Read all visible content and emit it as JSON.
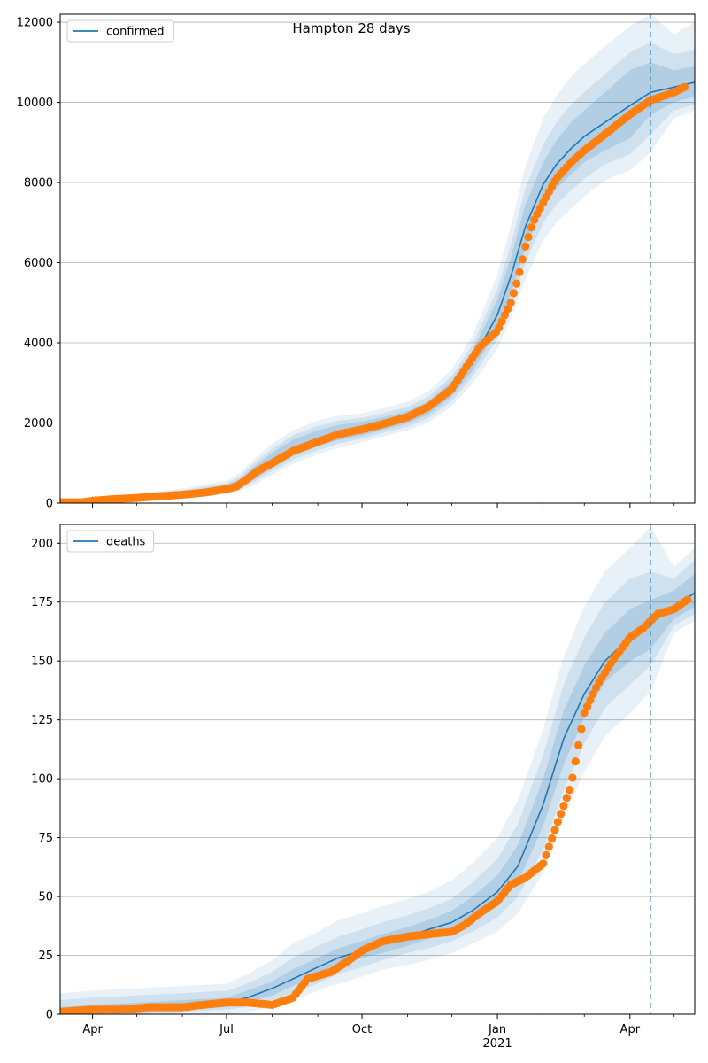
{
  "figure": {
    "title": "Hampton 28 days"
  },
  "colors": {
    "model_line": "#1f77b4",
    "band": "#1f77b4",
    "observed": "#ff7f0e",
    "grid": "#b0b0b0",
    "forecast_marker": "#1f77b4"
  },
  "x_axis": {
    "domain": [
      "2020-03-10",
      "2021-05-15"
    ],
    "major_ticks": [
      {
        "date": "2020-04-01",
        "label": "Apr"
      },
      {
        "date": "2020-07-01",
        "label": "Jul"
      },
      {
        "date": "2020-10-01",
        "label": "Oct"
      },
      {
        "date": "2021-01-01",
        "label": "Jan",
        "sublabel": "2021"
      },
      {
        "date": "2021-04-01",
        "label": "Apr"
      }
    ],
    "minor_ticks": [
      "2020-05-01",
      "2020-06-01",
      "2020-08-01",
      "2020-09-01",
      "2020-11-01",
      "2020-12-01",
      "2021-02-01",
      "2021-03-01",
      "2021-05-01"
    ],
    "forecast_start": "2021-04-15"
  },
  "chart_data": [
    {
      "type": "line",
      "legend": [
        "confirmed"
      ],
      "legend_position": "upper left",
      "grid": "horizontal",
      "ylim": [
        0,
        12200
      ],
      "yticks": [
        0,
        2000,
        4000,
        6000,
        8000,
        10000,
        12000
      ],
      "series": [
        {
          "name": "confirmed",
          "kind": "model",
          "x": [
            "2020-03-10",
            "2020-04-01",
            "2020-05-01",
            "2020-06-01",
            "2020-07-01",
            "2020-07-10",
            "2020-07-20",
            "2020-08-01",
            "2020-08-15",
            "2020-09-01",
            "2020-09-15",
            "2020-10-01",
            "2020-10-15",
            "2020-11-01",
            "2020-11-15",
            "2020-12-01",
            "2020-12-15",
            "2021-01-01",
            "2021-01-10",
            "2021-01-20",
            "2021-02-01",
            "2021-02-10",
            "2021-02-20",
            "2021-03-01",
            "2021-03-15",
            "2021-04-01",
            "2021-04-15",
            "2021-05-01",
            "2021-05-15"
          ],
          "y": [
            0,
            50,
            120,
            220,
            370,
            500,
            760,
            1070,
            1380,
            1620,
            1760,
            1860,
            1980,
            2140,
            2370,
            2850,
            3550,
            4700,
            5650,
            6900,
            7950,
            8450,
            8850,
            9150,
            9500,
            9920,
            10250,
            10380,
            10500
          ],
          "bands": [
            {
              "lower": [
                0,
                20,
                80,
                170,
                300,
                400,
                600,
                880,
                1180,
                1420,
                1570,
                1690,
                1830,
                1990,
                2210,
                2660,
                3300,
                4330,
                5200,
                6350,
                7400,
                7850,
                8200,
                8500,
                8800,
                9100,
                9700,
                10000,
                10150
              ],
              "upper": [
                0,
                80,
                160,
                280,
                450,
                600,
                920,
                1260,
                1580,
                1820,
                1950,
                2040,
                2140,
                2300,
                2540,
                3050,
                3800,
                5080,
                6120,
                7450,
                8500,
                9050,
                9500,
                9800,
                10250,
                10800,
                11000,
                10800,
                10900
              ]
            },
            {
              "lower": [
                0,
                10,
                60,
                140,
                260,
                350,
                530,
                800,
                1080,
                1320,
                1480,
                1610,
                1750,
                1910,
                2120,
                2550,
                3150,
                4100,
                4900,
                6000,
                7000,
                7450,
                7800,
                8100,
                8450,
                8700,
                9200,
                9800,
                9950
              ],
              "upper": [
                0,
                100,
                190,
                320,
                500,
                670,
                1010,
                1360,
                1690,
                1930,
                2060,
                2130,
                2240,
                2400,
                2650,
                3170,
                3960,
                5350,
                6450,
                7850,
                8950,
                9500,
                9950,
                10250,
                10700,
                11250,
                11500,
                11200,
                11300
              ]
            },
            {
              "lower": [
                0,
                0,
                40,
                110,
                220,
                300,
                450,
                710,
                980,
                1220,
                1380,
                1520,
                1660,
                1820,
                2010,
                2420,
                2980,
                3850,
                4600,
                5600,
                6550,
                7000,
                7350,
                7650,
                8050,
                8300,
                8750,
                9600,
                9800
              ],
              "upper": [
                0,
                130,
                230,
                370,
                560,
                750,
                1120,
                1480,
                1820,
                2060,
                2180,
                2240,
                2360,
                2530,
                2790,
                3330,
                4180,
                5700,
                6900,
                8400,
                9600,
                10150,
                10650,
                10950,
                11400,
                11900,
                12200,
                11700,
                12000
              ]
            }
          ]
        },
        {
          "name": "observed confirmed",
          "kind": "observed",
          "x": [
            "2020-03-10",
            "2020-03-25",
            "2020-04-01",
            "2020-04-15",
            "2020-05-01",
            "2020-05-15",
            "2020-06-01",
            "2020-06-15",
            "2020-07-01",
            "2020-07-08",
            "2020-07-15",
            "2020-07-22",
            "2020-08-01",
            "2020-08-15",
            "2020-09-01",
            "2020-09-15",
            "2020-10-01",
            "2020-10-15",
            "2020-11-01",
            "2020-11-15",
            "2020-12-01",
            "2020-12-10",
            "2020-12-20",
            "2021-01-01",
            "2021-01-10",
            "2021-01-15",
            "2021-01-20",
            "2021-01-25",
            "2021-02-01",
            "2021-02-10",
            "2021-02-20",
            "2021-03-01",
            "2021-03-15",
            "2021-04-01",
            "2021-04-15",
            "2021-05-01",
            "2021-05-08"
          ],
          "y": [
            20,
            20,
            60,
            100,
            130,
            170,
            210,
            260,
            350,
            420,
            600,
            800,
            1000,
            1300,
            1530,
            1720,
            1840,
            1970,
            2150,
            2400,
            2850,
            3350,
            3900,
            4300,
            5000,
            5600,
            6400,
            7000,
            7500,
            8100,
            8500,
            8800,
            9200,
            9700,
            10050,
            10250,
            10380
          ]
        }
      ]
    },
    {
      "type": "line",
      "legend": [
        "deaths"
      ],
      "legend_position": "upper left",
      "grid": "horizontal",
      "ylim": [
        0,
        208
      ],
      "yticks": [
        0,
        25,
        50,
        75,
        100,
        125,
        150,
        175,
        200
      ],
      "series": [
        {
          "name": "deaths",
          "kind": "model",
          "x": [
            "2020-03-10",
            "2020-04-01",
            "2020-05-01",
            "2020-06-01",
            "2020-07-01",
            "2020-07-15",
            "2020-08-01",
            "2020-08-15",
            "2020-09-01",
            "2020-09-15",
            "2020-10-01",
            "2020-10-15",
            "2020-11-01",
            "2020-11-15",
            "2020-12-01",
            "2020-12-15",
            "2021-01-01",
            "2021-01-15",
            "2021-02-01",
            "2021-02-15",
            "2021-03-01",
            "2021-03-15",
            "2021-04-01",
            "2021-04-15",
            "2021-05-01",
            "2021-05-15"
          ],
          "y": [
            1,
            2,
            3,
            4,
            5,
            7,
            11,
            15,
            20,
            24,
            27,
            30,
            33,
            36,
            39,
            44,
            52,
            63,
            89,
            117,
            136,
            150,
            160,
            166,
            173,
            179
          ],
          "bands": [
            {
              "lower": [
                0,
                0,
                1,
                2,
                3,
                5,
                8,
                12,
                17,
                21,
                24,
                26,
                29,
                32,
                35,
                39,
                46,
                56,
                80,
                106,
                126,
                141,
                150,
                155,
                168,
                173
              ],
              "upper": [
                3,
                4,
                5,
                6,
                7,
                10,
                14,
                19,
                24,
                28,
                31,
                34,
                37,
                40,
                44,
                50,
                59,
                72,
                100,
                129,
                148,
                162,
                172,
                176,
                180,
                187
              ]
            },
            {
              "lower": [
                0,
                0,
                0,
                1,
                2,
                3,
                6,
                9,
                13,
                17,
                20,
                23,
                26,
                28,
                31,
                35,
                41,
                50,
                70,
                95,
                115,
                130,
                140,
                148,
                165,
                170
              ],
              "upper": [
                6,
                7,
                8,
                9,
                10,
                13,
                18,
                24,
                29,
                33,
                36,
                39,
                42,
                45,
                49,
                56,
                66,
                81,
                110,
                140,
                160,
                175,
                185,
                188,
                185,
                193
              ]
            },
            {
              "lower": [
                0,
                0,
                0,
                0,
                0,
                1,
                3,
                6,
                10,
                13,
                16,
                19,
                21,
                23,
                26,
                30,
                35,
                43,
                60,
                83,
                103,
                118,
                128,
                137,
                162,
                167
              ],
              "upper": [
                9,
                10,
                11,
                12,
                13,
                17,
                23,
                30,
                35,
                40,
                43,
                46,
                49,
                52,
                57,
                64,
                75,
                91,
                121,
                152,
                173,
                188,
                198,
                207,
                190,
                198
              ]
            }
          ]
        },
        {
          "name": "observed deaths",
          "kind": "observed",
          "x": [
            "2020-03-10",
            "2020-04-01",
            "2020-04-20",
            "2020-05-10",
            "2020-06-01",
            "2020-06-15",
            "2020-07-01",
            "2020-07-15",
            "2020-08-01",
            "2020-08-15",
            "2020-08-25",
            "2020-09-10",
            "2020-09-20",
            "2020-10-01",
            "2020-10-15",
            "2020-11-01",
            "2020-11-15",
            "2020-12-01",
            "2020-12-10",
            "2020-12-20",
            "2021-01-01",
            "2021-01-10",
            "2021-01-20",
            "2021-02-01",
            "2021-02-10",
            "2021-02-20",
            "2021-03-01",
            "2021-03-10",
            "2021-03-20",
            "2021-04-01",
            "2021-04-10",
            "2021-04-20",
            "2021-05-01",
            "2021-05-10"
          ],
          "y": [
            1,
            2,
            2,
            3,
            3,
            4,
            5,
            5,
            4,
            7,
            15,
            18,
            22,
            27,
            31,
            33,
            34,
            35,
            38,
            43,
            48,
            55,
            58,
            64,
            80,
            97,
            128,
            140,
            150,
            160,
            164,
            170,
            172,
            176
          ]
        }
      ]
    }
  ]
}
